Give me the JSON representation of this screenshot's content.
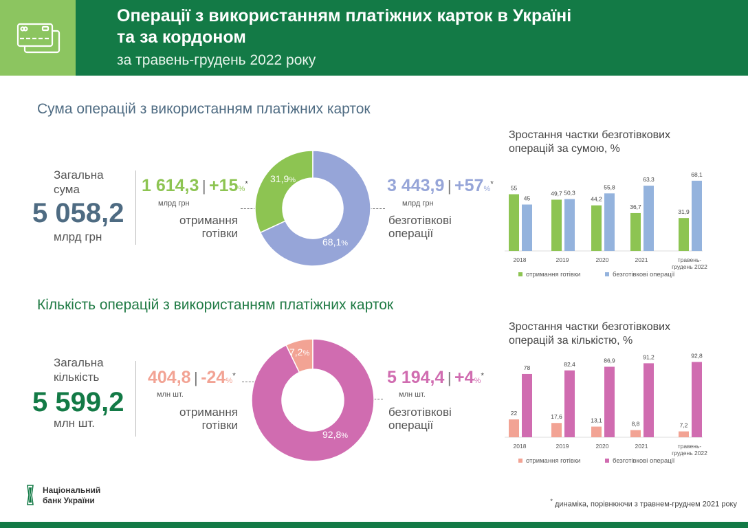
{
  "header": {
    "title_line1": "Операції з використанням платіжних карток в Україні",
    "title_line2": "та за кордоном",
    "subtitle": "за травень-грудень 2022 року",
    "icon": "credit-cards-icon"
  },
  "colors": {
    "dark_green": "#137a46",
    "light_green": "#8cc560",
    "cash_sum": "#8dc452",
    "cashless_sum": "#96a5d8",
    "cashless_sum_bar": "#94b3dd",
    "cash_count": "#f2a394",
    "cashless_count": "#d06cb0",
    "slate": "#4e6b82"
  },
  "sum": {
    "section_title": "Сума операцій з використанням платіжних карток",
    "total_label": "Загальна сума",
    "total_value": "5 058,2",
    "total_unit": "млрд грн",
    "cash": {
      "value": "1 614,3",
      "change": "+15",
      "pct_sign": "%",
      "star": "*",
      "unit": "млрд грн",
      "label_line1": "отримання",
      "label_line2": "готівки",
      "share": "31,9",
      "share_num": 31.9
    },
    "cashless": {
      "value": "3 443,9",
      "change": "+57",
      "pct_sign": "%",
      "star": "*",
      "unit": "млрд грн",
      "label_line1": "безготівкові",
      "label_line2": "операції",
      "share": "68,1",
      "share_num": 68.1
    }
  },
  "count": {
    "section_title": "Кількість операцій з використанням платіжних карток",
    "total_label": "Загальна кількість",
    "total_value": "5 599,2",
    "total_unit": "млн шт.",
    "cash": {
      "value": "404,8",
      "change": "-24",
      "pct_sign": "%",
      "star": "*",
      "unit": "млн шт.",
      "label_line1": "отримання",
      "label_line2": "готівки",
      "share": "7,2",
      "share_num": 7.2
    },
    "cashless": {
      "value": "5 194,4",
      "change": "+4",
      "pct_sign": "%",
      "star": "*",
      "unit": "млн шт.",
      "label_line1": "безготівкові",
      "label_line2": "операції",
      "share": "92,8",
      "share_num": 92.8
    }
  },
  "chart_data": [
    {
      "type": "bar",
      "title": "Зростання частки безготівкових операцій за сумою, %",
      "categories": [
        "2018",
        "2019",
        "2020",
        "2021",
        "травень-грудень 2022"
      ],
      "series": [
        {
          "name": "отримання готівки",
          "values": [
            55,
            49.7,
            44.2,
            36.7,
            31.9
          ],
          "labels": [
            "55",
            "49,7",
            "44,2",
            "36,7",
            "31,9"
          ]
        },
        {
          "name": "безготівкові операції",
          "values": [
            45,
            50.3,
            55.8,
            63.3,
            68.1
          ],
          "labels": [
            "45",
            "50,3",
            "55,8",
            "63,3",
            "68,1"
          ]
        }
      ],
      "ylim": [
        0,
        70
      ],
      "grid": false,
      "legend": "bottom"
    },
    {
      "type": "bar",
      "title": "Зростання частки безготівкових операцій за кількістю, %",
      "categories": [
        "2018",
        "2019",
        "2020",
        "2021",
        "травень-грудень 2022"
      ],
      "series": [
        {
          "name": "отримання готівки",
          "values": [
            22,
            17.6,
            13.1,
            8.8,
            7.2
          ],
          "labels": [
            "22",
            "17,6",
            "13,1",
            "8,8",
            "7,2"
          ]
        },
        {
          "name": "безготівкові операції",
          "values": [
            78,
            82.4,
            86.9,
            91.2,
            92.8
          ],
          "labels": [
            "78",
            "82,4",
            "86,9",
            "91,2",
            "92,8"
          ]
        }
      ],
      "ylim": [
        0,
        95
      ],
      "grid": false,
      "legend": "bottom"
    }
  ],
  "footer": {
    "logo_line1": "Національний",
    "logo_line2": "банк України",
    "note_star": "*",
    "note": "динаміка, порівнюючи з травнем-груднем 2021 року"
  }
}
